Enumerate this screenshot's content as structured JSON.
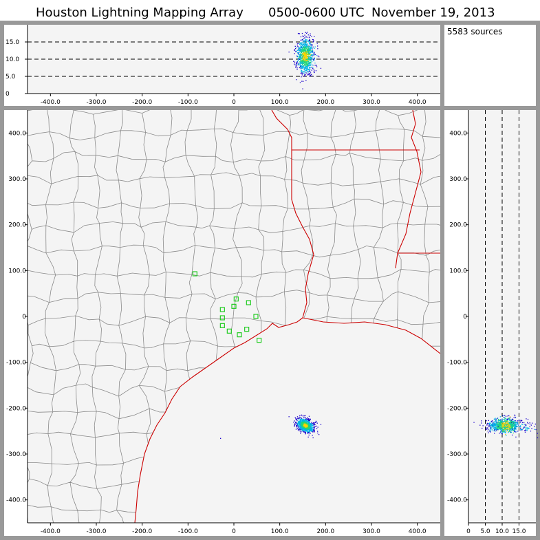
{
  "title": {
    "network": "Houston Lightning Mapping Array",
    "time_window": "0500-0600 UTC",
    "date": "November 19, 2013"
  },
  "info_panel": {
    "source_count": "5583 sources"
  },
  "colors": {
    "frame": "#999999",
    "plot_background": "#f4f4f4",
    "county_lines": "#8a8a8a",
    "state_lines": "#cc0000",
    "station_markers": "#22cc22",
    "density_low": "#1a00cc",
    "density_mid": "#00b4e6",
    "density_high": "#22d676",
    "density_peak": "#ffd200"
  },
  "axes": {
    "horizontal_km": {
      "range": [
        -450,
        450
      ],
      "ticks": [
        "-400.0",
        "-300.0",
        "-200.0",
        "-100.0",
        "0",
        "100.0",
        "200.0",
        "300.0",
        "400.0"
      ]
    },
    "vertical_km": {
      "range": [
        -450,
        450
      ],
      "ticks": [
        "400.0",
        "300.0",
        "200.0",
        "100.0",
        "0",
        "-100.0",
        "-200.0",
        "-300.0",
        "-400.0"
      ]
    },
    "altitude_km": {
      "range": [
        0,
        20
      ],
      "ticks": [
        "0",
        "5.0",
        "10.0",
        "15.0"
      ]
    }
  },
  "stations": [
    {
      "x": -85,
      "y": 93
    },
    {
      "x": -25,
      "y": 15
    },
    {
      "x": -25,
      "y": -3
    },
    {
      "x": -25,
      "y": -20
    },
    {
      "x": -10,
      "y": -32
    },
    {
      "x": 0,
      "y": 22
    },
    {
      "x": 5,
      "y": 38
    },
    {
      "x": 12,
      "y": -40
    },
    {
      "x": 28,
      "y": -28
    },
    {
      "x": 32,
      "y": 30
    },
    {
      "x": 48,
      "y": 0
    },
    {
      "x": 55,
      "y": -52
    }
  ],
  "storm_cluster": {
    "center_x_km": 155,
    "center_y_km": -237,
    "center_alt_km": 11
  }
}
